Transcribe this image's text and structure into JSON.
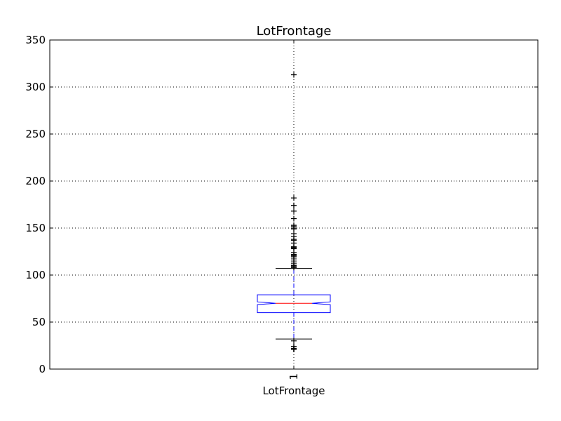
{
  "chart_data": {
    "type": "box",
    "title": "LotFrontage",
    "xlabel": "LotFrontage",
    "ylabel": "",
    "ylim": [
      0,
      350
    ],
    "yticks": [
      0,
      50,
      100,
      150,
      200,
      250,
      300,
      350
    ],
    "ytick_labels": [
      "0",
      "50",
      "100",
      "150",
      "200",
      "250",
      "300",
      "350"
    ],
    "categories": [
      "1"
    ],
    "grid": true,
    "notched": true,
    "box": {
      "whisker_low": 32,
      "q1": 60,
      "median": 70,
      "q3": 79,
      "whisker_high": 107,
      "notch_low": 68.5,
      "notch_high": 71.5
    },
    "outliers": [
      313,
      182,
      174,
      174,
      168,
      160,
      153,
      152,
      150,
      149,
      144,
      141,
      138,
      137,
      134,
      130,
      130,
      129,
      128,
      124,
      122,
      121,
      120,
      118,
      116,
      114,
      112,
      110,
      109,
      108,
      30,
      24,
      24,
      22,
      21,
      21,
      21,
      21
    ],
    "colors": {
      "box": "#0000ff",
      "median": "#ff0000",
      "whisker": "#0000ff",
      "cap": "#000000",
      "flier": "#000000",
      "grid": "#000000"
    }
  }
}
